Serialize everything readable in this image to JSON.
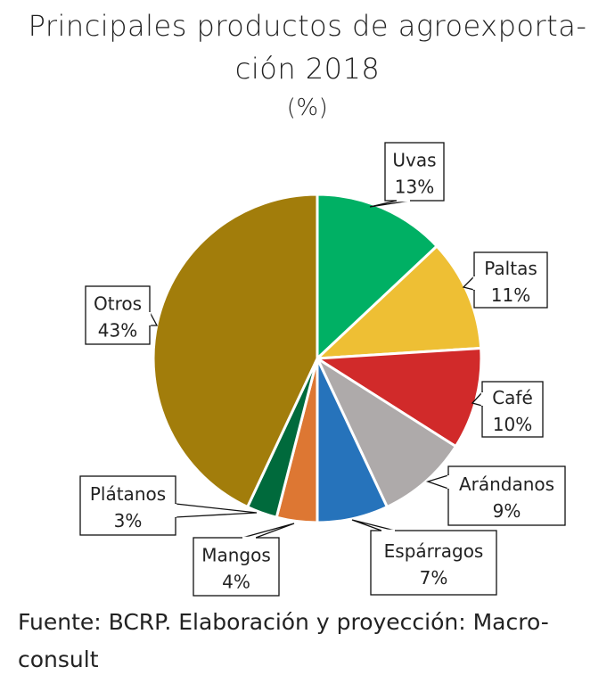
{
  "chart_data": {
    "type": "pie",
    "title_line1": "Principales productos de agroexporta-",
    "title_line2": "ción 2018",
    "subtitle": "(%)",
    "start": "top, clockwise",
    "slices": [
      {
        "label": "Uvas",
        "value": 13,
        "display": "13%",
        "color": "#00b064"
      },
      {
        "label": "Paltas",
        "value": 11,
        "display": "11%",
        "color": "#eebf34"
      },
      {
        "label": "Café",
        "value": 10,
        "display": "10%",
        "color": "#d12a2a"
      },
      {
        "label": "Arándanos",
        "value": 9,
        "display": "9%",
        "color": "#aeaaaa"
      },
      {
        "label": "Espárragos",
        "value": 7,
        "display": "7%",
        "color": "#2673bb"
      },
      {
        "label": "Mangos",
        "value": 4,
        "display": "4%",
        "color": "#dd7733"
      },
      {
        "label": "Plátanos",
        "value": 3,
        "display": "3%",
        "color": "#006a3c"
      },
      {
        "label": "Otros",
        "value": 43,
        "display": "43%",
        "color": "#a27d0b"
      }
    ]
  },
  "source_line1": "Fuente: BCRP. Elaboración y proyección: Macro-",
  "source_line2": "consult"
}
